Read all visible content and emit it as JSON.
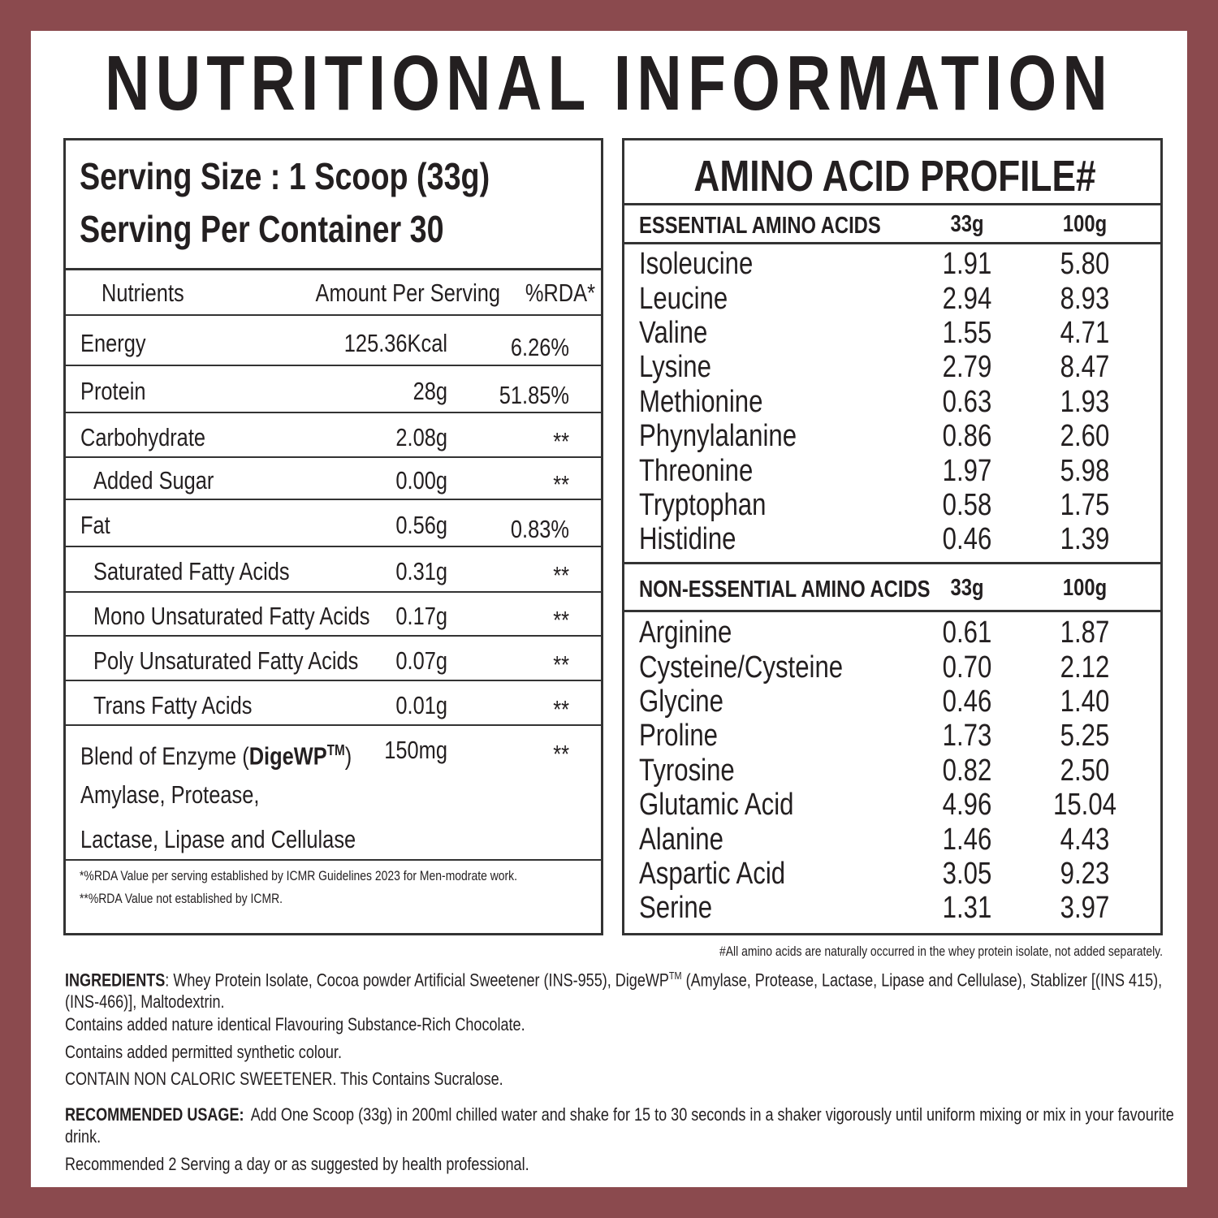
{
  "title": "NUTRITIONAL INFORMATION",
  "nutrition_facts": {
    "serving_size": "Serving Size : 1 Scoop (33g)",
    "servings_per_container": "Serving Per Container 30",
    "columns": [
      "Nutrients",
      "Amount Per Serving",
      "%RDA*"
    ],
    "rows": [
      {
        "name": "Energy",
        "amount": "125.36Kcal",
        "rda": "6.26%"
      },
      {
        "name": "Protein",
        "amount": "28g",
        "rda": "51.85%"
      },
      {
        "name": "Carbohydrate",
        "amount": "2.08g",
        "rda": "**",
        "sub_rows": [
          {
            "name": "Added Sugar",
            "amount": "0.00g",
            "rda": "**"
          }
        ]
      },
      {
        "name": "Fat",
        "amount": "0.56g",
        "rda": "0.83%",
        "sub_rows": [
          {
            "name": "Saturated Fatty Acids",
            "amount": "0.31g",
            "rda": "**"
          },
          {
            "name": "Mono Unsaturated Fatty Acids",
            "amount": "0.17g",
            "rda": "**"
          },
          {
            "name": "Poly Unsaturated Fatty Acids",
            "amount": "0.07g",
            "rda": "**"
          },
          {
            "name": "Trans Fatty Acids",
            "amount": "0.01g",
            "rda": "**"
          }
        ]
      }
    ],
    "enzyme_blend": {
      "name": "Blend of Enzyme (",
      "brand": "DigeWP",
      "trademark": "TM",
      "name_end": ")",
      "amount": "150mg",
      "rda": "**",
      "components": [
        "Amylase, Protease,",
        "Lactase, Lipase and Cellulase"
      ]
    },
    "footnotes": [
      "*%RDA Value per serving established by ICMR Guidelines 2023 for Men-modrate work.",
      "**%RDA Value not established by ICMR."
    ]
  },
  "amino_acid_profile": {
    "title": "AMINO ACID PROFILE#",
    "groups": [
      {
        "heading": "ESSENTIAL AMINO ACIDS",
        "columns": [
          "33g",
          "100g"
        ],
        "rows": [
          [
            "Isoleucine",
            "1.91",
            "5.80"
          ],
          [
            "Leucine",
            "2.94",
            "8.93"
          ],
          [
            "Valine",
            "1.55",
            "4.71"
          ],
          [
            "Lysine",
            "2.79",
            "8.47"
          ],
          [
            "Methionine",
            "0.63",
            "1.93"
          ],
          [
            "Phynylalanine",
            "0.86",
            "2.60"
          ],
          [
            "Threonine",
            "1.97",
            "5.98"
          ],
          [
            "Tryptophan",
            "0.58",
            "1.75"
          ],
          [
            "Histidine",
            "0.46",
            "1.39"
          ]
        ]
      },
      {
        "heading": "NON-ESSENTIAL AMINO ACIDS",
        "columns": [
          "33g",
          "100g"
        ],
        "rows": [
          [
            "Arginine",
            "0.61",
            "1.87"
          ],
          [
            "Cysteine/Cysteine",
            "0.70",
            "2.12"
          ],
          [
            "Glycine",
            "0.46",
            "1.40"
          ],
          [
            "Proline",
            "1.73",
            "5.25"
          ],
          [
            "Tyrosine",
            "0.82",
            "2.50"
          ],
          [
            "Glutamic Acid",
            "4.96",
            "15.04"
          ],
          [
            "Alanine",
            "1.46",
            "4.43"
          ],
          [
            "Aspartic Acid",
            "3.05",
            "9.23"
          ],
          [
            "Serine",
            "1.31",
            "3.97"
          ]
        ]
      }
    ],
    "footnote": "#All amino acids are naturally occurred in the whey protein isolate, not added separately."
  },
  "ingredients": {
    "label": "INGREDIENTS",
    "text": ": Whey Protein Isolate, Cocoa powder Artificial Sweetener (INS-955), DigeWP",
    "trademark": "TM",
    "text_end": " (Amylase, Protease, Lactase, Lipase and Cellulase), Stablizer [(INS 415), (INS-466)], Maltodextrin.",
    "notes": [
      "Contains added nature identical Flavouring Substance-Rich Chocolate.",
      "Contains added permitted synthetic colour.",
      "CONTAIN NON CALORIC SWEETENER. This Contains Sucralose."
    ]
  },
  "usage": {
    "label": "RECOMMENDED USAGE:",
    "text": "Add One Scoop (33g) in 200ml chilled water and shake for 15 to 30 seconds in a shaker vigorously until uniform mixing or mix in your favourite drink.",
    "note": "Recommended 2 Serving a day or as suggested by health professional."
  }
}
